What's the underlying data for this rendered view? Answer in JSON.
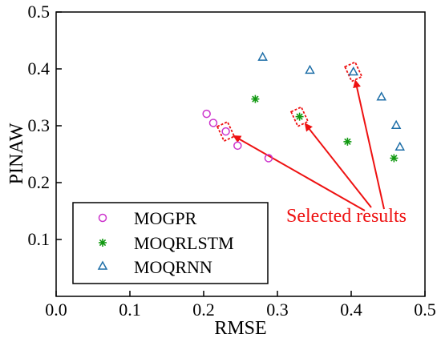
{
  "chart_data": {
    "type": "scatter",
    "title": "",
    "xlabel": "RMSE",
    "ylabel": "PINAW",
    "xlim": [
      0.0,
      0.5
    ],
    "ylim": [
      0.0,
      0.5
    ],
    "x_ticks": [
      "0.0",
      "0.1",
      "0.2",
      "0.3",
      "0.4",
      "0.5"
    ],
    "y_ticks": [
      "0.1",
      "0.2",
      "0.3",
      "0.4",
      "0.5"
    ],
    "x_tick_values": [
      0.0,
      0.1,
      0.2,
      0.3,
      0.4,
      0.5
    ],
    "y_tick_values": [
      0.1,
      0.2,
      0.3,
      0.4,
      0.5
    ],
    "grid": false,
    "legend_position": "bottom-left",
    "series": [
      {
        "name": "MOGPR",
        "marker": "circle",
        "color": "#cc33cc",
        "points": [
          {
            "x": 0.204,
            "y": 0.321
          },
          {
            "x": 0.213,
            "y": 0.305
          },
          {
            "x": 0.23,
            "y": 0.29
          },
          {
            "x": 0.246,
            "y": 0.265
          },
          {
            "x": 0.288,
            "y": 0.243
          }
        ]
      },
      {
        "name": "MOQRLSTM",
        "marker": "asterisk",
        "color": "#119911",
        "points": [
          {
            "x": 0.27,
            "y": 0.347
          },
          {
            "x": 0.33,
            "y": 0.316
          },
          {
            "x": 0.395,
            "y": 0.272
          },
          {
            "x": 0.458,
            "y": 0.243
          }
        ]
      },
      {
        "name": "MOQRNN",
        "marker": "triangle",
        "color": "#1f6fa8",
        "points": [
          {
            "x": 0.28,
            "y": 0.421
          },
          {
            "x": 0.344,
            "y": 0.398
          },
          {
            "x": 0.403,
            "y": 0.395
          },
          {
            "x": 0.441,
            "y": 0.351
          },
          {
            "x": 0.461,
            "y": 0.301
          },
          {
            "x": 0.466,
            "y": 0.263
          }
        ]
      }
    ],
    "highlighted": [
      {
        "x": 0.23,
        "y": 0.29
      },
      {
        "x": 0.33,
        "y": 0.316
      },
      {
        "x": 0.403,
        "y": 0.395
      }
    ],
    "annotation": {
      "text": "Selected results",
      "color": "#ee1111",
      "anchor": {
        "x": 0.425,
        "y": 0.145
      }
    }
  }
}
